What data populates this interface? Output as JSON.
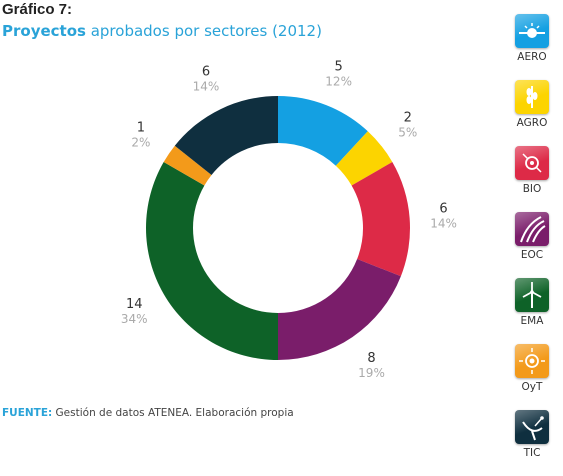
{
  "heading": {
    "number": "Gráfico 7:",
    "title_bold": "Proyectos",
    "title_rest": " aprobados por sectores (2012)"
  },
  "chart_data": {
    "type": "pie",
    "title": "Proyectos aprobados por sectores (2012)",
    "slices": [
      {
        "name": "AERO",
        "value": 5,
        "percent": "12%",
        "color": "#14a0e2"
      },
      {
        "name": "AGRO",
        "value": 2,
        "percent": "5%",
        "color": "#fcd400"
      },
      {
        "name": "BIO",
        "value": 6,
        "percent": "14%",
        "color": "#dd2a47"
      },
      {
        "name": "EOC",
        "value": 8,
        "percent": "19%",
        "color": "#7a1d6a"
      },
      {
        "name": "EMA",
        "value": 14,
        "percent": "34%",
        "color": "#0e6228"
      },
      {
        "name": "OyT",
        "value": 1,
        "percent": "2%",
        "color": "#f39a1a"
      },
      {
        "name": "TIC",
        "value": 6,
        "percent": "14%",
        "color": "#0f2f3f"
      }
    ]
  },
  "legend": [
    {
      "label": "AERO",
      "icon": "aero-icon",
      "color": "#14a0e2"
    },
    {
      "label": "AGRO",
      "icon": "agro-icon",
      "color": "#fcd400"
    },
    {
      "label": "BIO",
      "icon": "bio-icon",
      "color": "#dd2a47"
    },
    {
      "label": "EOC",
      "icon": "eoc-icon",
      "color": "#7a1d6a"
    },
    {
      "label": "EMA",
      "icon": "ema-icon",
      "color": "#0e6228"
    },
    {
      "label": "OyT",
      "icon": "oyt-icon",
      "color": "#f39a1a"
    },
    {
      "label": "TIC",
      "icon": "tic-icon",
      "color": "#0f2f3f"
    }
  ],
  "source": {
    "label": "FUENTE",
    "separator": ":",
    "text": " Gestión de datos ATENEA. Elaboración propia"
  }
}
